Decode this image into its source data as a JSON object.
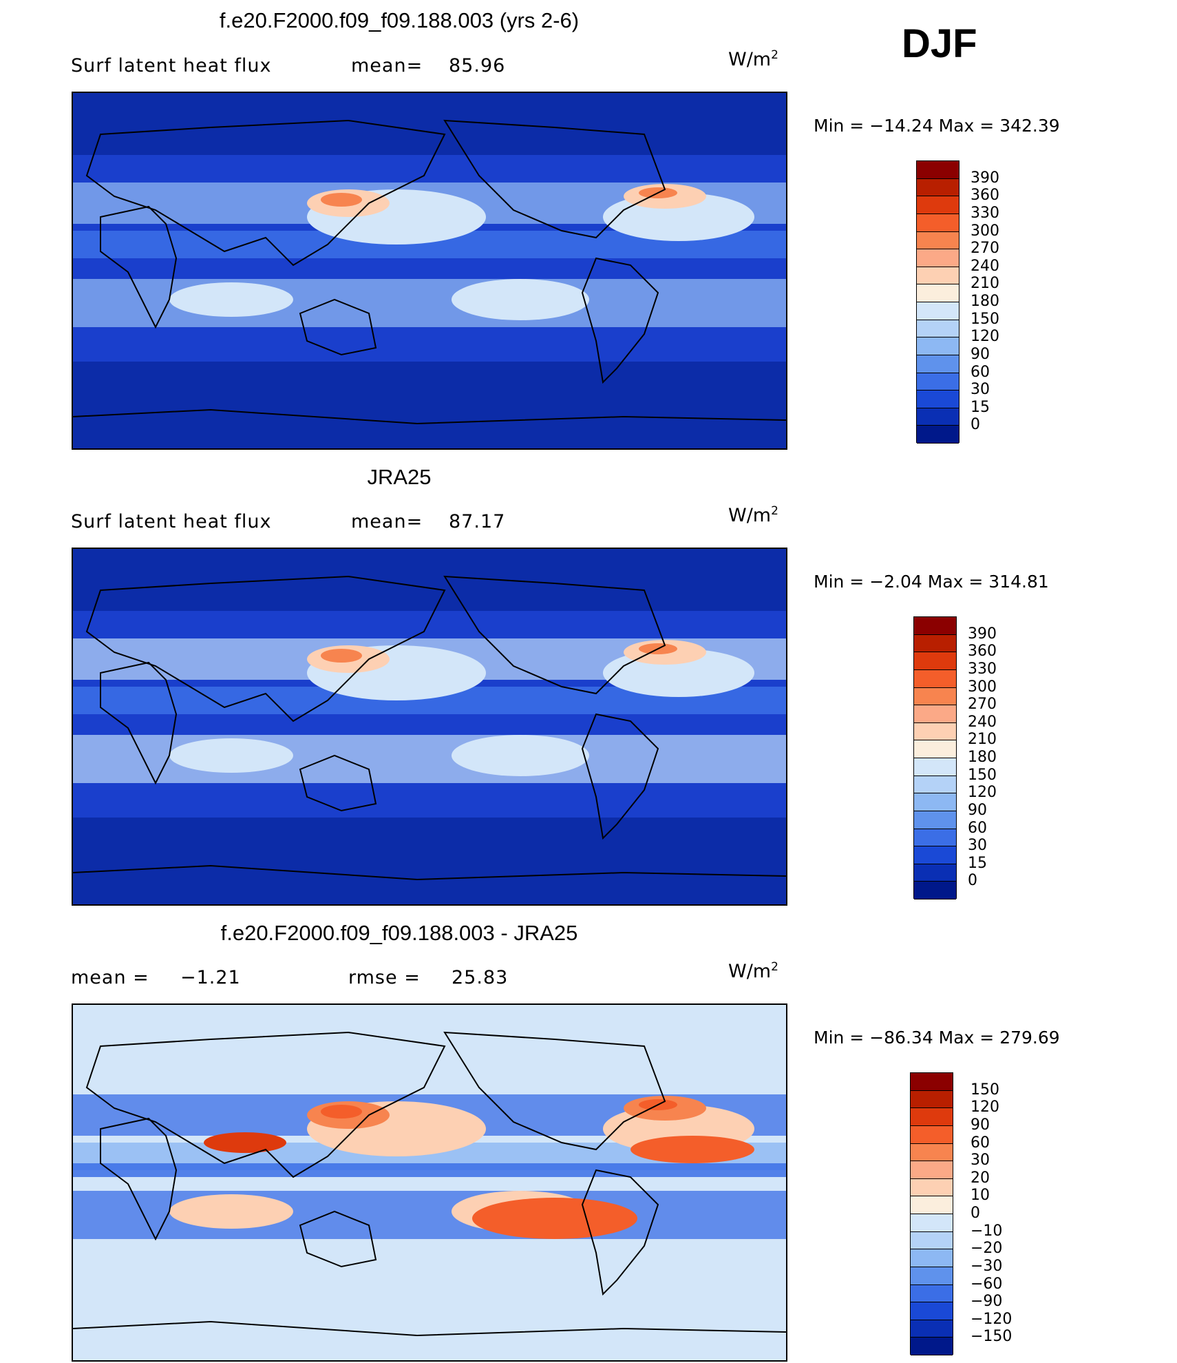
{
  "season": "DJF",
  "chart_data": [
    {
      "type": "heatmap",
      "title": "f.e20.F2000.f09_f09.188.003 (yrs 2-6)",
      "subtitle": "Surf latent heat flux",
      "stat1_label": "mean=",
      "stat1_value": "85.96",
      "units": "W/m",
      "units_exp": "2",
      "min_label": "Min = −14.24 Max = 342.39",
      "colorbar": {
        "levels": [
          "390",
          "360",
          "330",
          "300",
          "270",
          "240",
          "210",
          "180",
          "150",
          "120",
          "90",
          "60",
          "30",
          "15",
          "0"
        ],
        "colors": [
          "#8b0000",
          "#b81f00",
          "#de3a0d",
          "#f45e2a",
          "#f7844f",
          "#fba987",
          "#fdd0b3",
          "#fbeedd",
          "#d3e6f9",
          "#b4d2f7",
          "#8db8f3",
          "#5f92ec",
          "#3b6ee6",
          "#1a49d6",
          "#0a2fb4",
          "#00188a"
        ]
      },
      "map_palette": {
        "bg": "#1a3fcc",
        "land": "#0c2ca8",
        "mid": "#3d73e8",
        "light": "#8fb7f2",
        "pale": "#d3e6f9",
        "warm1": "#fdd0b3",
        "warm2": "#f7844f",
        "hot": "#e2461c"
      },
      "diff": false
    },
    {
      "type": "heatmap",
      "title": "JRA25",
      "subtitle": "Surf latent heat flux",
      "stat1_label": "mean=",
      "stat1_value": "87.17",
      "units": "W/m",
      "units_exp": "2",
      "min_label": "Min =  −2.04 Max = 314.81",
      "colorbar": {
        "levels": [
          "390",
          "360",
          "330",
          "300",
          "270",
          "240",
          "210",
          "180",
          "150",
          "120",
          "90",
          "60",
          "30",
          "15",
          "0"
        ],
        "colors": [
          "#8b0000",
          "#b81f00",
          "#de3a0d",
          "#f45e2a",
          "#f7844f",
          "#fba987",
          "#fdd0b3",
          "#fbeedd",
          "#d3e6f9",
          "#b4d2f7",
          "#8db8f3",
          "#5f92ec",
          "#3b6ee6",
          "#1a49d6",
          "#0a2fb4",
          "#00188a"
        ]
      },
      "map_palette": {
        "bg": "#1a3fcc",
        "land": "#0c2ca8",
        "mid": "#3d73e8",
        "light": "#b4d2f7",
        "pale": "#d3e6f9",
        "warm1": "#fdd0b3",
        "warm2": "#f7844f",
        "hot": "#e2461c"
      },
      "diff": false
    },
    {
      "type": "heatmap",
      "title": "f.e20.F2000.f09_f09.188.003 - JRA25",
      "subtitle": "mean =",
      "stat1_value": "−1.21",
      "stat2_label": "rmse =",
      "stat2_value": "25.83",
      "units": "W/m",
      "units_exp": "2",
      "min_label": "Min = −86.34 Max = 279.69",
      "colorbar": {
        "levels": [
          "150",
          "120",
          "90",
          "60",
          "30",
          "20",
          "10",
          "0",
          "−10",
          "−20",
          "−30",
          "−60",
          "−90",
          "−120",
          "−150"
        ],
        "colors": [
          "#8b0000",
          "#b81f00",
          "#de3a0d",
          "#f45e2a",
          "#f7844f",
          "#fba987",
          "#fdd0b3",
          "#fbeedd",
          "#d3e6f9",
          "#b4d2f7",
          "#8db8f3",
          "#5f92ec",
          "#3b6ee6",
          "#1a49d6",
          "#0a2fb4",
          "#00188a"
        ]
      },
      "map_palette": {
        "bg": "#d3e6f9",
        "land": "#d3e6f9",
        "mid": "#8db8f3",
        "light": "#3b6ee6",
        "pale": "#fdd0b3",
        "warm1": "#f7844f",
        "warm2": "#f45e2a",
        "hot": "#de3a0d"
      },
      "diff": true
    }
  ]
}
